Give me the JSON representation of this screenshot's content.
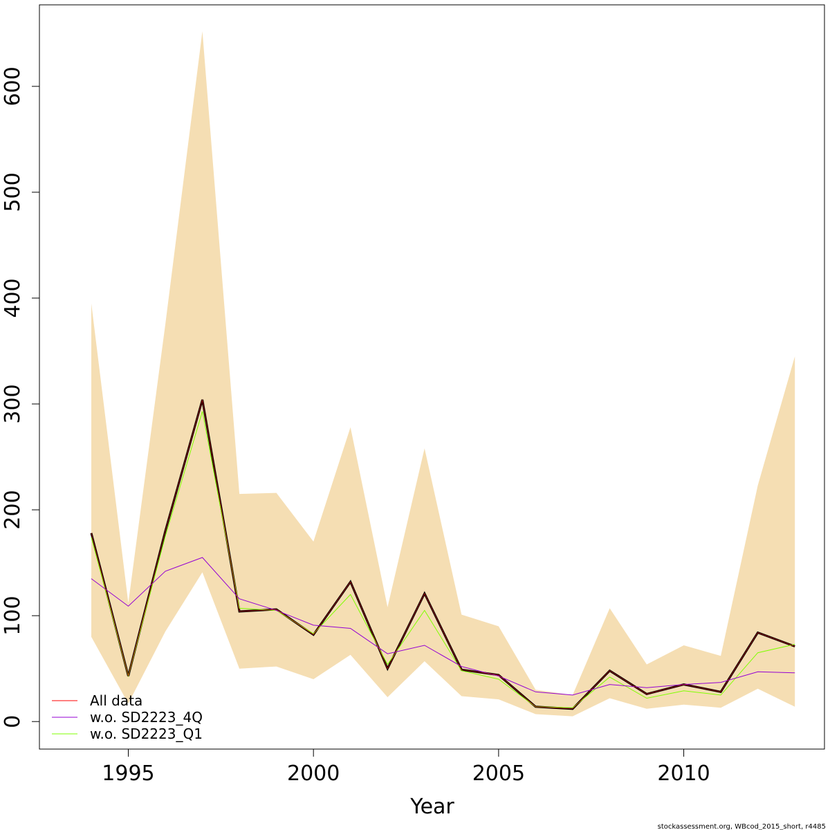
{
  "chart_data": {
    "type": "line",
    "title": "",
    "xlabel": "Year",
    "ylabel": "",
    "xlim": [
      1992.6,
      2013.8
    ],
    "ylim": [
      -26,
      677
    ],
    "x_ticks": [
      1995,
      2000,
      2005,
      2010
    ],
    "y_ticks": [
      0,
      100,
      200,
      300,
      400,
      500,
      600
    ],
    "grid": false,
    "legend_position": "bottom-left",
    "x": [
      1994,
      1995,
      1996,
      1997,
      1998,
      1999,
      2000,
      2001,
      2002,
      2003,
      2004,
      2005,
      2006,
      2007,
      2008,
      2009,
      2010,
      2011,
      2012,
      2013
    ],
    "confidence_band": {
      "color": "#f5deb3",
      "upper": [
        395,
        112,
        375,
        652,
        215,
        216,
        170,
        278,
        108,
        258,
        101,
        90,
        30,
        25,
        107,
        54,
        72,
        62,
        223,
        345
      ],
      "lower": [
        80,
        17,
        85,
        141,
        50,
        52,
        40,
        63,
        23,
        57,
        24,
        21,
        7,
        5,
        22,
        12,
        16,
        13,
        31,
        14
      ]
    },
    "series": [
      {
        "name": "All data",
        "color": "#ff0000",
        "values": [
          178,
          43,
          180,
          304,
          104,
          106,
          82,
          132,
          50,
          121,
          49,
          44,
          14,
          12,
          48,
          26,
          35,
          28,
          84,
          71
        ]
      },
      {
        "name": "w.o. SD2223_4Q",
        "color": "#9400d3",
        "values": [
          135,
          109,
          142,
          155,
          116,
          105,
          91,
          88,
          64,
          72,
          52,
          43,
          28,
          25,
          35,
          32,
          35,
          37,
          47,
          46
        ]
      },
      {
        "name": "w.o. SD2223_Q1",
        "color": "#7fff00",
        "values": [
          174,
          43,
          175,
          293,
          107,
          105,
          83,
          120,
          54,
          105,
          48,
          40,
          14,
          13,
          42,
          22,
          29,
          25,
          65,
          73
        ]
      }
    ],
    "estimate_line": {
      "name": "",
      "color": "#000000",
      "values": [
        178,
        43,
        180,
        304,
        104,
        106,
        82,
        132,
        50,
        121,
        49,
        44,
        14,
        12,
        48,
        26,
        35,
        28,
        84,
        71
      ]
    },
    "footer": "stockassessment.org, WBcod_2015_short, r4485"
  }
}
